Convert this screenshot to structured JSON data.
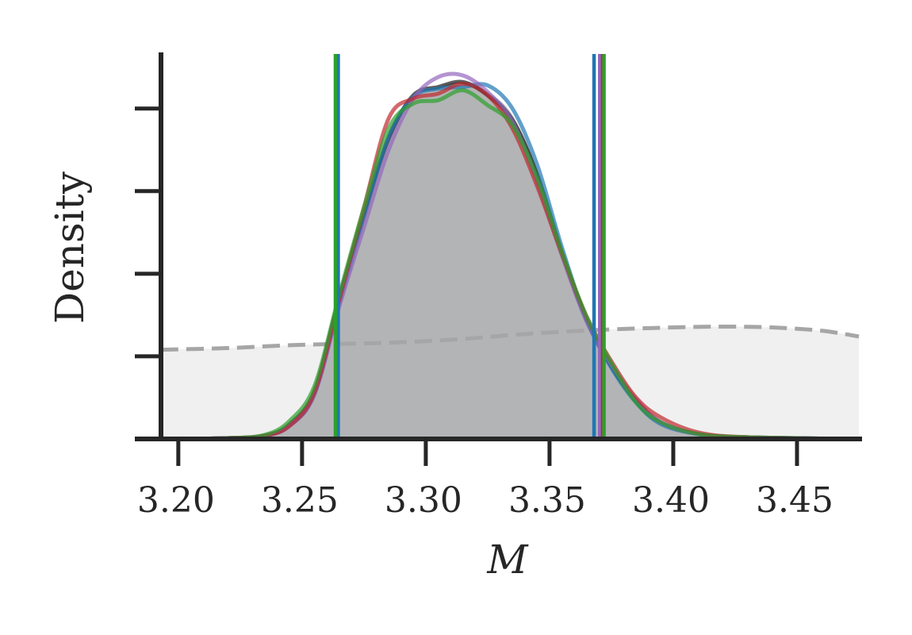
{
  "chart_data": {
    "type": "area",
    "xlabel": "M",
    "ylabel": "Density",
    "xlim": [
      3.193,
      3.475
    ],
    "ylim": [
      0,
      23.3
    ],
    "x_ticks": [
      3.2,
      3.25,
      3.3,
      3.35,
      3.4,
      3.45
    ],
    "x_tick_labels": [
      "3.20",
      "3.25",
      "3.30",
      "3.35",
      "3.40",
      "3.45"
    ],
    "y_ticks": [
      5,
      10,
      15,
      20
    ],
    "y_tick_labels_shown": false,
    "grid": false,
    "legend": "none",
    "prior": {
      "style": "dashed",
      "color": "#a6a6a6",
      "fill": "#f0f0f0",
      "x": [
        3.193,
        3.22,
        3.25,
        3.28,
        3.31,
        3.34,
        3.37,
        3.4,
        3.42,
        3.44,
        3.46,
        3.475
      ],
      "y": [
        5.4,
        5.5,
        5.7,
        5.8,
        6.0,
        6.35,
        6.6,
        6.75,
        6.8,
        6.75,
        6.55,
        6.2
      ]
    },
    "reference_fill": {
      "color": "#b3b4b6",
      "x": [
        3.193,
        3.22,
        3.235,
        3.245,
        3.255,
        3.265,
        3.275,
        3.285,
        3.295,
        3.305,
        3.315,
        3.325,
        3.335,
        3.345,
        3.355,
        3.365,
        3.375,
        3.385,
        3.395,
        3.41,
        3.43,
        3.475
      ],
      "y": [
        0.0,
        0.05,
        0.2,
        0.9,
        2.8,
        8.3,
        13.5,
        18.3,
        20.7,
        21.3,
        21.6,
        21.0,
        19.6,
        16.3,
        11.5,
        7.3,
        4.4,
        2.3,
        1.0,
        0.3,
        0.1,
        0.0
      ]
    },
    "series": [
      {
        "color": "#1a1a1a",
        "x": [
          3.193,
          3.22,
          3.235,
          3.245,
          3.255,
          3.265,
          3.275,
          3.285,
          3.295,
          3.305,
          3.315,
          3.325,
          3.335,
          3.345,
          3.355,
          3.365,
          3.375,
          3.385,
          3.395,
          3.41,
          3.43,
          3.475
        ],
        "y": [
          0.0,
          0.05,
          0.2,
          0.9,
          2.9,
          8.5,
          13.6,
          18.2,
          20.8,
          21.3,
          21.6,
          20.8,
          19.3,
          16.0,
          11.3,
          7.2,
          4.4,
          2.3,
          1.0,
          0.3,
          0.1,
          0.0
        ]
      },
      {
        "color": "#1f77b4",
        "x": [
          3.193,
          3.22,
          3.235,
          3.245,
          3.255,
          3.265,
          3.275,
          3.285,
          3.295,
          3.305,
          3.315,
          3.325,
          3.335,
          3.345,
          3.355,
          3.365,
          3.375,
          3.385,
          3.395,
          3.41,
          3.43,
          3.475
        ],
        "y": [
          0.0,
          0.05,
          0.2,
          0.8,
          2.7,
          8.2,
          13.4,
          18.3,
          20.7,
          21.2,
          21.3,
          21.4,
          20.0,
          16.6,
          11.6,
          7.2,
          4.3,
          2.2,
          0.9,
          0.3,
          0.1,
          0.0
        ]
      },
      {
        "color": "#9467bd",
        "x": [
          3.193,
          3.22,
          3.235,
          3.245,
          3.255,
          3.265,
          3.275,
          3.285,
          3.295,
          3.305,
          3.315,
          3.325,
          3.335,
          3.345,
          3.355,
          3.365,
          3.375,
          3.385,
          3.395,
          3.41,
          3.43,
          3.475
        ],
        "y": [
          0.0,
          0.05,
          0.2,
          0.8,
          2.7,
          8.0,
          12.8,
          17.5,
          20.6,
          21.9,
          22.0,
          21.0,
          19.2,
          15.6,
          11.1,
          7.1,
          4.5,
          2.4,
          1.0,
          0.3,
          0.1,
          0.0
        ]
      },
      {
        "color": "#c0282d",
        "x": [
          3.193,
          3.22,
          3.235,
          3.245,
          3.255,
          3.265,
          3.275,
          3.285,
          3.295,
          3.305,
          3.315,
          3.325,
          3.335,
          3.345,
          3.355,
          3.365,
          3.375,
          3.385,
          3.395,
          3.41,
          3.43,
          3.475
        ],
        "y": [
          0.0,
          0.05,
          0.2,
          0.8,
          2.8,
          8.4,
          14.0,
          19.4,
          20.6,
          20.9,
          21.5,
          20.8,
          18.8,
          15.3,
          11.2,
          7.4,
          4.7,
          2.5,
          1.3,
          0.4,
          0.1,
          0.0
        ]
      },
      {
        "color": "#2ca02c",
        "x": [
          3.193,
          3.22,
          3.235,
          3.245,
          3.255,
          3.265,
          3.275,
          3.285,
          3.295,
          3.305,
          3.315,
          3.325,
          3.335,
          3.345,
          3.355,
          3.365,
          3.375,
          3.385,
          3.395,
          3.41,
          3.43,
          3.475
        ],
        "y": [
          0.0,
          0.05,
          0.25,
          1.1,
          3.2,
          8.7,
          14.0,
          18.8,
          20.3,
          20.5,
          21.1,
          20.2,
          19.0,
          15.8,
          11.3,
          7.4,
          4.6,
          2.2,
          1.0,
          0.3,
          0.1,
          0.0
        ]
      }
    ],
    "vertical_lines": [
      {
        "x": 3.2646,
        "color": "#1f77b4"
      },
      {
        "x": 3.2635,
        "color": "#2ca02c"
      },
      {
        "x": 3.368,
        "color": "#1f77b4"
      },
      {
        "x": 3.3703,
        "color": "#9467bd"
      },
      {
        "x": 3.3715,
        "color": "#c0282d"
      },
      {
        "x": 3.372,
        "color": "#2ca02c"
      }
    ],
    "axis_color": "#262626"
  }
}
